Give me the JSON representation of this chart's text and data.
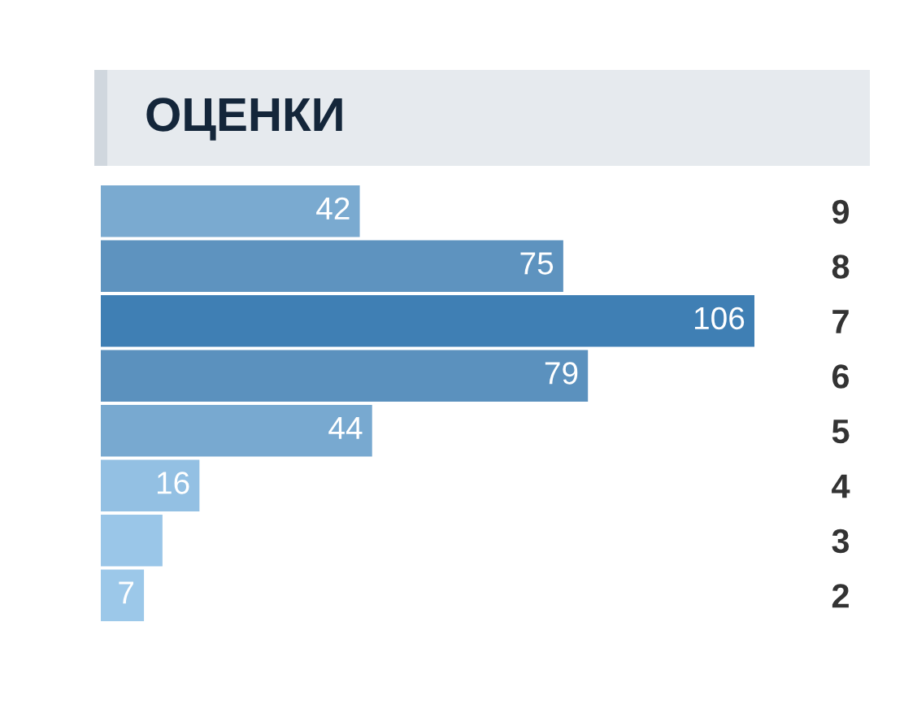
{
  "chart_data": {
    "type": "bar",
    "orientation": "horizontal",
    "title": "ОЦЕНКИ",
    "categories": [
      "9",
      "8",
      "7",
      "6",
      "5",
      "4",
      "3",
      "2"
    ],
    "values": [
      42,
      75,
      106,
      79,
      44,
      16,
      10,
      7
    ],
    "value_labels": [
      "42",
      "75",
      "106",
      "79",
      "44",
      "16",
      null,
      "7"
    ],
    "colors": [
      "#7aaad0",
      "#5e93bf",
      "#3f7fb4",
      "#5b91be",
      "#78a9d0",
      "#93c0e3",
      "#9ac6e8",
      "#9cc8e9"
    ],
    "grid": false,
    "legend": false
  }
}
